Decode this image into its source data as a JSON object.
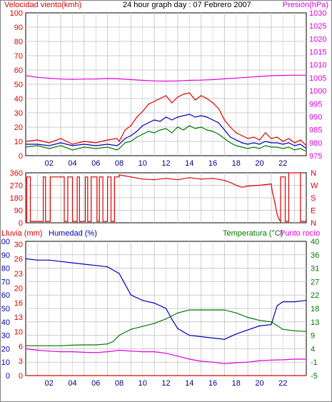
{
  "colors": {
    "red": "#e00000",
    "darkred": "#b00000",
    "blue": "#0000b8",
    "green": "#007800",
    "magenta": "#e000e0",
    "grid": "#cccccc",
    "axis": "#000000",
    "dark": "#000080"
  },
  "chart_data": [
    {
      "type": "line",
      "title": "24 hour graph day : 07 Febrero 2007",
      "ylabel": "Velocidad viento(kmh)",
      "y2label": "Presión(hPa)",
      "ylim": [
        0,
        100
      ],
      "y2lim": [
        975,
        1030
      ],
      "yticks": [
        "0",
        "10",
        "20",
        "30",
        "40",
        "50",
        "60",
        "70",
        "80",
        "90",
        "100"
      ],
      "y2ticks": [
        "975",
        "980",
        "985",
        "990",
        "995",
        "1000",
        "1005",
        "1010",
        "1015",
        "1020",
        "1025",
        "1030"
      ],
      "xticks": [
        "02",
        "04",
        "06",
        "08",
        "10",
        "12",
        "14",
        "16",
        "18",
        "20",
        "22"
      ],
      "xlim": [
        0,
        24
      ],
      "series": [
        {
          "color": "#e00000",
          "x": [
            0,
            1,
            2,
            3,
            4,
            5,
            6,
            7,
            7.8,
            8,
            8.5,
            9,
            9.5,
            10,
            10.5,
            11,
            11.5,
            12,
            12.5,
            13,
            13.5,
            14,
            14.5,
            15,
            15.5,
            16,
            16.5,
            17,
            17.5,
            18,
            18.5,
            19,
            19.5,
            20,
            20.5,
            21,
            21.5,
            22,
            22.5,
            23,
            23.5,
            24
          ],
          "y": [
            10,
            11,
            9,
            12,
            8,
            10,
            9,
            11,
            12,
            10,
            18,
            21,
            27,
            31,
            36,
            38,
            40,
            42,
            37,
            41,
            43,
            44,
            39,
            42,
            40,
            37,
            33,
            25,
            20,
            16,
            14,
            12,
            13,
            11,
            16,
            12,
            13,
            10,
            12,
            9,
            11,
            7
          ]
        },
        {
          "color": "#0000b8",
          "x": [
            0,
            1,
            2,
            3,
            4,
            5,
            6,
            7,
            7.8,
            8,
            8.5,
            9,
            9.5,
            10,
            10.5,
            11,
            11.5,
            12,
            12.5,
            13,
            13.5,
            14,
            14.5,
            15,
            15.5,
            16,
            16.5,
            17,
            17.5,
            18,
            18.5,
            19,
            19.5,
            20,
            20.5,
            21,
            21.5,
            22,
            22.5,
            23,
            23.5,
            24
          ],
          "y": [
            8,
            8,
            7,
            9,
            7,
            8,
            7,
            8,
            7,
            8,
            12,
            14,
            17,
            21,
            23,
            25,
            24,
            27,
            25,
            27,
            28,
            29,
            27,
            28,
            27,
            25,
            23,
            18,
            13,
            11,
            9,
            8,
            9,
            8,
            10,
            9,
            9,
            8,
            9,
            7,
            8,
            5
          ]
        },
        {
          "color": "#007800",
          "x": [
            0,
            1,
            2,
            3,
            4,
            5,
            6,
            7,
            7.8,
            8,
            8.5,
            9,
            9.5,
            10,
            10.5,
            11,
            11.5,
            12,
            12.5,
            13,
            13.5,
            14,
            14.5,
            15,
            15.5,
            16,
            16.5,
            17,
            17.5,
            18,
            18.5,
            19,
            19.5,
            20,
            20.5,
            21,
            21.5,
            22,
            22.5,
            23,
            23.5,
            24
          ],
          "y": [
            6,
            7,
            5,
            7,
            4,
            6,
            5,
            6,
            4,
            5,
            9,
            10,
            13,
            15,
            17,
            16,
            18,
            19,
            16,
            20,
            18,
            21,
            19,
            20,
            18,
            17,
            15,
            12,
            9,
            7,
            6,
            5,
            6,
            5,
            7,
            6,
            6,
            5,
            6,
            4,
            5,
            3
          ]
        },
        {
          "color": "#e000e0",
          "axis": "y2",
          "x": [
            0,
            1,
            2,
            3,
            4,
            5,
            6,
            7,
            8,
            9,
            10,
            11,
            12,
            13,
            14,
            15,
            16,
            17,
            18,
            19,
            20,
            21,
            22,
            23,
            24
          ],
          "y": [
            1005.8,
            1005.2,
            1004.8,
            1004.5,
            1004.4,
            1004.5,
            1004.5,
            1004.7,
            1004.6,
            1004.3,
            1004.0,
            1003.8,
            1003.7,
            1003.8,
            1004.0,
            1004.1,
            1004.3,
            1004.6,
            1004.9,
            1005.2,
            1005.5,
            1005.8,
            1005.9,
            1006.0,
            1006.0
          ]
        }
      ]
    },
    {
      "type": "line",
      "ylabel": "",
      "ylim": [
        0,
        360
      ],
      "yticks": [
        "0",
        "90",
        "180",
        "270",
        "360"
      ],
      "y2ticks": [
        "N",
        "E",
        "S",
        "W",
        "N"
      ],
      "xlim": [
        0,
        24
      ],
      "series": [
        {
          "color": "#e00000",
          "x": [
            0,
            0.1,
            0.1,
            0.4,
            0.4,
            1.5,
            1.5,
            1.7,
            1.7,
            2.1,
            2.1,
            3.3,
            3.3,
            3.6,
            3.6,
            4.0,
            4.0,
            4.4,
            4.4,
            4.6,
            4.6,
            5.1,
            5.1,
            5.3,
            5.3,
            5.6,
            5.6,
            6.1,
            6.1,
            6.3,
            6.3,
            6.6,
            6.6,
            7.0,
            7.0,
            7.3,
            7.3,
            7.6,
            7.6,
            8.0,
            8.0,
            9,
            10,
            11,
            12,
            13,
            14,
            15,
            16,
            17,
            17.5,
            18,
            18.5,
            19,
            20,
            21,
            21.1,
            21.3,
            21.5,
            21.7,
            21.8,
            21.8,
            22.2,
            22.2,
            22.5,
            22.5,
            23.5,
            23.5,
            24
          ],
          "y": [
            10,
            10,
            330,
            330,
            10,
            10,
            330,
            330,
            10,
            10,
            330,
            330,
            10,
            10,
            330,
            330,
            10,
            10,
            330,
            330,
            10,
            10,
            330,
            330,
            10,
            10,
            330,
            330,
            10,
            10,
            330,
            330,
            10,
            10,
            330,
            330,
            10,
            10,
            330,
            330,
            345,
            330,
            315,
            310,
            320,
            310,
            325,
            315,
            320,
            305,
            290,
            270,
            255,
            265,
            270,
            280,
            220,
            150,
            60,
            20,
            10,
            330,
            330,
            10,
            10,
            360,
            360,
            10,
            10
          ]
        }
      ]
    },
    {
      "type": "line",
      "ylabel": "Lluvia (mm)",
      "ylabel2": "Humedad (%)",
      "y2label": "Temperatura (°C)",
      "y2label2": "Punto rocío",
      "ylim": [
        0,
        100
      ],
      "y2lim": [
        -5,
        40
      ],
      "yticks_rain": [
        "0",
        "3",
        "6",
        "10",
        "13",
        "16",
        "20",
        "23",
        "26",
        "30"
      ],
      "yticks_hum": [
        "0",
        "10",
        "20",
        "30",
        "40",
        "50",
        "60",
        "70",
        "80",
        "90",
        "100"
      ],
      "y2ticks": [
        "-5",
        "-1",
        "4",
        "9",
        "13",
        "18",
        "22",
        "27",
        "31",
        "36",
        "40"
      ],
      "xticks": [
        "02",
        "04",
        "06",
        "08",
        "10",
        "12",
        "14",
        "16",
        "18",
        "20",
        "22"
      ],
      "xlim": [
        0,
        24
      ],
      "series": [
        {
          "name": "Humedad (%)",
          "color": "#0000b8",
          "x": [
            0,
            1,
            2,
            3,
            4,
            5,
            6,
            7,
            8,
            8.5,
            9,
            10,
            11,
            12,
            12.5,
            13,
            14,
            15,
            16,
            17,
            18,
            19,
            20,
            21,
            21.5,
            22,
            23,
            24
          ],
          "y": [
            87,
            86,
            86,
            85,
            84,
            83,
            82,
            81,
            76,
            68,
            60,
            56,
            54,
            50,
            42,
            35,
            30,
            29,
            28,
            27,
            31,
            34,
            37,
            38,
            52,
            55,
            55,
            56
          ]
        },
        {
          "name": "Temperatura (°C)",
          "color": "#007800",
          "axis": "y2",
          "x": [
            0,
            1,
            2,
            3,
            4,
            5,
            6,
            7,
            7.5,
            8,
            8.5,
            9,
            10,
            11,
            12,
            12.5,
            13,
            14,
            15,
            16,
            17,
            18,
            19,
            20,
            21,
            22,
            23,
            24
          ],
          "y": [
            5.0,
            5.0,
            5.0,
            5.0,
            5.2,
            5.3,
            5.3,
            5.6,
            6.5,
            8.5,
            9.5,
            10.5,
            11.5,
            12.5,
            14.0,
            15.0,
            16.0,
            17.0,
            17.0,
            17.0,
            17.0,
            16.0,
            14.5,
            13.5,
            13.0,
            10.5,
            10.0,
            9.8
          ]
        },
        {
          "name": "Punto rocío",
          "color": "#e000e0",
          "axis": "y2",
          "x": [
            0,
            1,
            2,
            3,
            4,
            5,
            6,
            7,
            8,
            9,
            10,
            11,
            12,
            13,
            14,
            15,
            16,
            17,
            18,
            19,
            20,
            21,
            22,
            23,
            24
          ],
          "y": [
            4.0,
            3.5,
            3.2,
            3.0,
            3.0,
            2.8,
            2.7,
            3.0,
            3.5,
            3.2,
            3.0,
            3.0,
            2.5,
            1.5,
            0.5,
            -0.2,
            -0.5,
            -1.0,
            -0.7,
            -0.5,
            0,
            0.2,
            0.3,
            0.5,
            0.5
          ]
        },
        {
          "name": "Lluvia (mm)",
          "color": "#e00000",
          "x": [
            0,
            24
          ],
          "y": [
            0,
            0
          ]
        }
      ]
    }
  ]
}
